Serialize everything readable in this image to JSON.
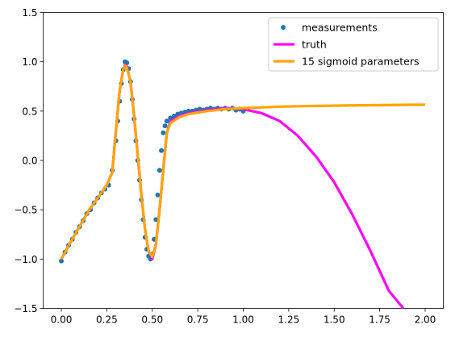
{
  "chart_data": {
    "type": "scatter",
    "title": "",
    "xlabel": "",
    "ylabel": "",
    "xlim": [
      -0.1,
      2.1
    ],
    "ylim": [
      -1.5,
      1.5
    ],
    "xticks": [
      "0.00",
      "0.25",
      "0.50",
      "0.75",
      "1.00",
      "1.25",
      "1.50",
      "1.75",
      "2.00"
    ],
    "yticks": [
      "−1.5",
      "−1.0",
      "−0.5",
      "0.0",
      "0.5",
      "1.0",
      "1.5"
    ],
    "grid": false,
    "legend_position": "upper-right",
    "series": [
      {
        "name": "measurements",
        "kind": "scatter",
        "color": "#1f77b4",
        "x": [
          0.0,
          0.02,
          0.04,
          0.06,
          0.08,
          0.1,
          0.12,
          0.14,
          0.16,
          0.18,
          0.2,
          0.22,
          0.24,
          0.26,
          0.28,
          0.3,
          0.31,
          0.32,
          0.33,
          0.34,
          0.35,
          0.36,
          0.37,
          0.38,
          0.39,
          0.4,
          0.41,
          0.42,
          0.43,
          0.44,
          0.45,
          0.46,
          0.47,
          0.48,
          0.49,
          0.5,
          0.51,
          0.52,
          0.53,
          0.54,
          0.55,
          0.56,
          0.57,
          0.58,
          0.6,
          0.62,
          0.64,
          0.66,
          0.68,
          0.7,
          0.72,
          0.74,
          0.76,
          0.78,
          0.8,
          0.82,
          0.84,
          0.86,
          0.88,
          0.9,
          0.92,
          0.94,
          0.96,
          0.98,
          1.0
        ],
        "y": [
          -1.02,
          -0.93,
          -0.86,
          -0.8,
          -0.73,
          -0.67,
          -0.61,
          -0.54,
          -0.5,
          -0.43,
          -0.38,
          -0.33,
          -0.29,
          -0.25,
          -0.1,
          0.2,
          0.4,
          0.6,
          0.78,
          0.92,
          1.0,
          0.99,
          0.93,
          0.8,
          0.62,
          0.42,
          0.2,
          0.0,
          -0.2,
          -0.4,
          -0.6,
          -0.78,
          -0.9,
          -0.97,
          -1.0,
          -0.95,
          -0.8,
          -0.6,
          -0.35,
          -0.1,
          0.1,
          0.28,
          0.35,
          0.4,
          0.43,
          0.45,
          0.47,
          0.48,
          0.49,
          0.5,
          0.5,
          0.51,
          0.52,
          0.51,
          0.52,
          0.53,
          0.52,
          0.53,
          0.52,
          0.53,
          0.52,
          0.53,
          0.51,
          0.52,
          0.5
        ]
      },
      {
        "name": "truth",
        "kind": "line",
        "color": "#ff00ff",
        "x": [
          0.0,
          0.05,
          0.1,
          0.15,
          0.2,
          0.25,
          0.28,
          0.3,
          0.32,
          0.34,
          0.35,
          0.36,
          0.38,
          0.4,
          0.42,
          0.44,
          0.46,
          0.48,
          0.5,
          0.52,
          0.54,
          0.56,
          0.58,
          0.6,
          0.65,
          0.7,
          0.8,
          0.9,
          1.0,
          1.1,
          1.2,
          1.3,
          1.4,
          1.5,
          1.6,
          1.7,
          1.8,
          1.88
        ],
        "y": [
          -1.0,
          -0.83,
          -0.67,
          -0.51,
          -0.38,
          -0.25,
          -0.12,
          0.3,
          0.7,
          0.92,
          0.97,
          0.95,
          0.8,
          0.45,
          0.05,
          -0.35,
          -0.7,
          -0.92,
          -1.0,
          -0.85,
          -0.5,
          -0.1,
          0.28,
          0.4,
          0.45,
          0.48,
          0.51,
          0.53,
          0.52,
          0.48,
          0.4,
          0.25,
          0.04,
          -0.22,
          -0.55,
          -0.92,
          -1.32,
          -1.5
        ]
      },
      {
        "name": "15 sigmoid parameters",
        "kind": "line",
        "color": "#ffa500",
        "x": [
          0.0,
          0.05,
          0.1,
          0.15,
          0.2,
          0.25,
          0.28,
          0.3,
          0.32,
          0.34,
          0.35,
          0.36,
          0.38,
          0.4,
          0.42,
          0.44,
          0.46,
          0.48,
          0.5,
          0.52,
          0.54,
          0.56,
          0.58,
          0.6,
          0.65,
          0.7,
          0.8,
          0.9,
          1.0,
          1.2,
          1.4,
          1.6,
          1.8,
          2.0
        ],
        "y": [
          -1.0,
          -0.83,
          -0.67,
          -0.51,
          -0.38,
          -0.25,
          -0.12,
          0.3,
          0.7,
          0.92,
          0.96,
          0.94,
          0.8,
          0.45,
          0.05,
          -0.35,
          -0.7,
          -0.92,
          -0.98,
          -0.85,
          -0.5,
          -0.1,
          0.28,
          0.38,
          0.44,
          0.47,
          0.5,
          0.52,
          0.53,
          0.545,
          0.553,
          0.558,
          0.562,
          0.565
        ]
      }
    ]
  }
}
